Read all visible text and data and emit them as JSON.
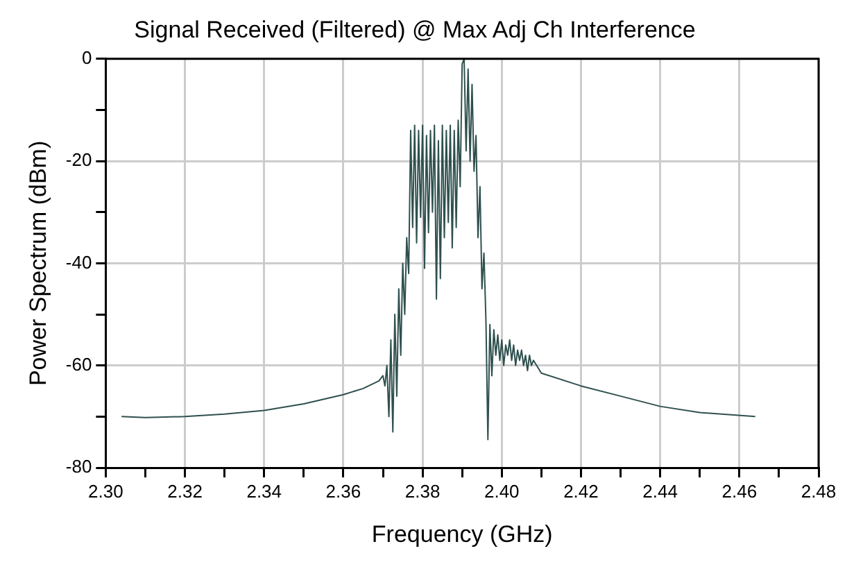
{
  "chart_data": {
    "type": "line",
    "title": "Signal Received (Filtered) @ Max Adj Ch Interference",
    "xlabel": "Frequency (GHz)",
    "ylabel": "Power Spectrum (dBm)",
    "x": [
      2.304,
      2.31,
      2.32,
      2.33,
      2.34,
      2.35,
      2.36,
      2.365,
      2.369,
      2.37,
      2.3705,
      2.371,
      2.3715,
      2.372,
      2.3725,
      2.373,
      2.3735,
      2.374,
      2.3745,
      2.375,
      2.3755,
      2.376,
      2.3765,
      2.377,
      2.3775,
      2.378,
      2.3785,
      2.379,
      2.3795,
      2.38,
      2.3805,
      2.381,
      2.3815,
      2.382,
      2.3825,
      2.383,
      2.3835,
      2.384,
      2.3845,
      2.385,
      2.3855,
      2.386,
      2.3865,
      2.387,
      2.3875,
      2.388,
      2.3885,
      2.389,
      2.3895,
      2.39,
      2.3905,
      2.391,
      2.3915,
      2.392,
      2.3925,
      2.393,
      2.3935,
      2.394,
      2.3945,
      2.395,
      2.3955,
      2.396,
      2.3965,
      2.397,
      2.3975,
      2.398,
      2.3985,
      2.399,
      2.3995,
      2.4,
      2.4005,
      2.401,
      2.4015,
      2.402,
      2.4025,
      2.403,
      2.4035,
      2.404,
      2.4045,
      2.405,
      2.4055,
      2.406,
      2.4065,
      2.407,
      2.4075,
      2.408,
      2.41,
      2.42,
      2.43,
      2.44,
      2.45,
      2.464
    ],
    "series": [
      {
        "color": "#2e504e",
        "values": [
          -70,
          -70.2,
          -70,
          -69.5,
          -68.8,
          -67.5,
          -65.7,
          -64.5,
          -63,
          -62,
          -64,
          -60,
          -70,
          -55,
          -73,
          -50,
          -66,
          -45,
          -58,
          -40,
          -50,
          -35,
          -42,
          -14,
          -33,
          -13,
          -36,
          -14,
          -31,
          -13,
          -41,
          -15,
          -34,
          -14,
          -30,
          -13,
          -47,
          -16,
          -43,
          -13,
          -35,
          -14,
          -32,
          -13,
          -37,
          -14,
          -33,
          -12,
          -25,
          -1,
          0,
          -18,
          -2,
          -20,
          -5,
          -22,
          -15,
          -35,
          -25,
          -45,
          -38,
          -51,
          -74.5,
          -52,
          -62,
          -53,
          -58,
          -54,
          -59,
          -55,
          -60,
          -56,
          -58,
          -55,
          -59,
          -56,
          -60,
          -57,
          -59,
          -57,
          -60,
          -58,
          -61,
          -58,
          -60,
          -59,
          -61.5,
          -64,
          -66,
          -68,
          -69.2,
          -70
        ]
      }
    ],
    "xlim": [
      2.3,
      2.48
    ],
    "xticks": [
      {
        "value": 2.3,
        "label": "2.30"
      },
      {
        "value": 2.31,
        "label": null
      },
      {
        "value": 2.32,
        "label": "2.32"
      },
      {
        "value": 2.33,
        "label": null
      },
      {
        "value": 2.34,
        "label": "2.34"
      },
      {
        "value": 2.35,
        "label": null
      },
      {
        "value": 2.36,
        "label": "2.36"
      },
      {
        "value": 2.37,
        "label": null
      },
      {
        "value": 2.38,
        "label": "2.38"
      },
      {
        "value": 2.39,
        "label": null
      },
      {
        "value": 2.4,
        "label": "2.40"
      },
      {
        "value": 2.41,
        "label": null
      },
      {
        "value": 2.42,
        "label": "2.42"
      },
      {
        "value": 2.43,
        "label": null
      },
      {
        "value": 2.44,
        "label": "2.44"
      },
      {
        "value": 2.45,
        "label": null
      },
      {
        "value": 2.46,
        "label": "2.46"
      },
      {
        "value": 2.47,
        "label": null
      },
      {
        "value": 2.48,
        "label": "2.48"
      }
    ],
    "ylim": [
      -80,
      0
    ],
    "yticks": [
      -80,
      {
        "value": -70,
        "label": null
      },
      -60,
      {
        "value": -50,
        "label": null
      },
      -40,
      {
        "value": -30,
        "label": null
      },
      -20,
      {
        "value": -10,
        "label": null
      },
      0
    ],
    "grid": true,
    "legend": false,
    "marker": "none",
    "line_style": "solid"
  }
}
